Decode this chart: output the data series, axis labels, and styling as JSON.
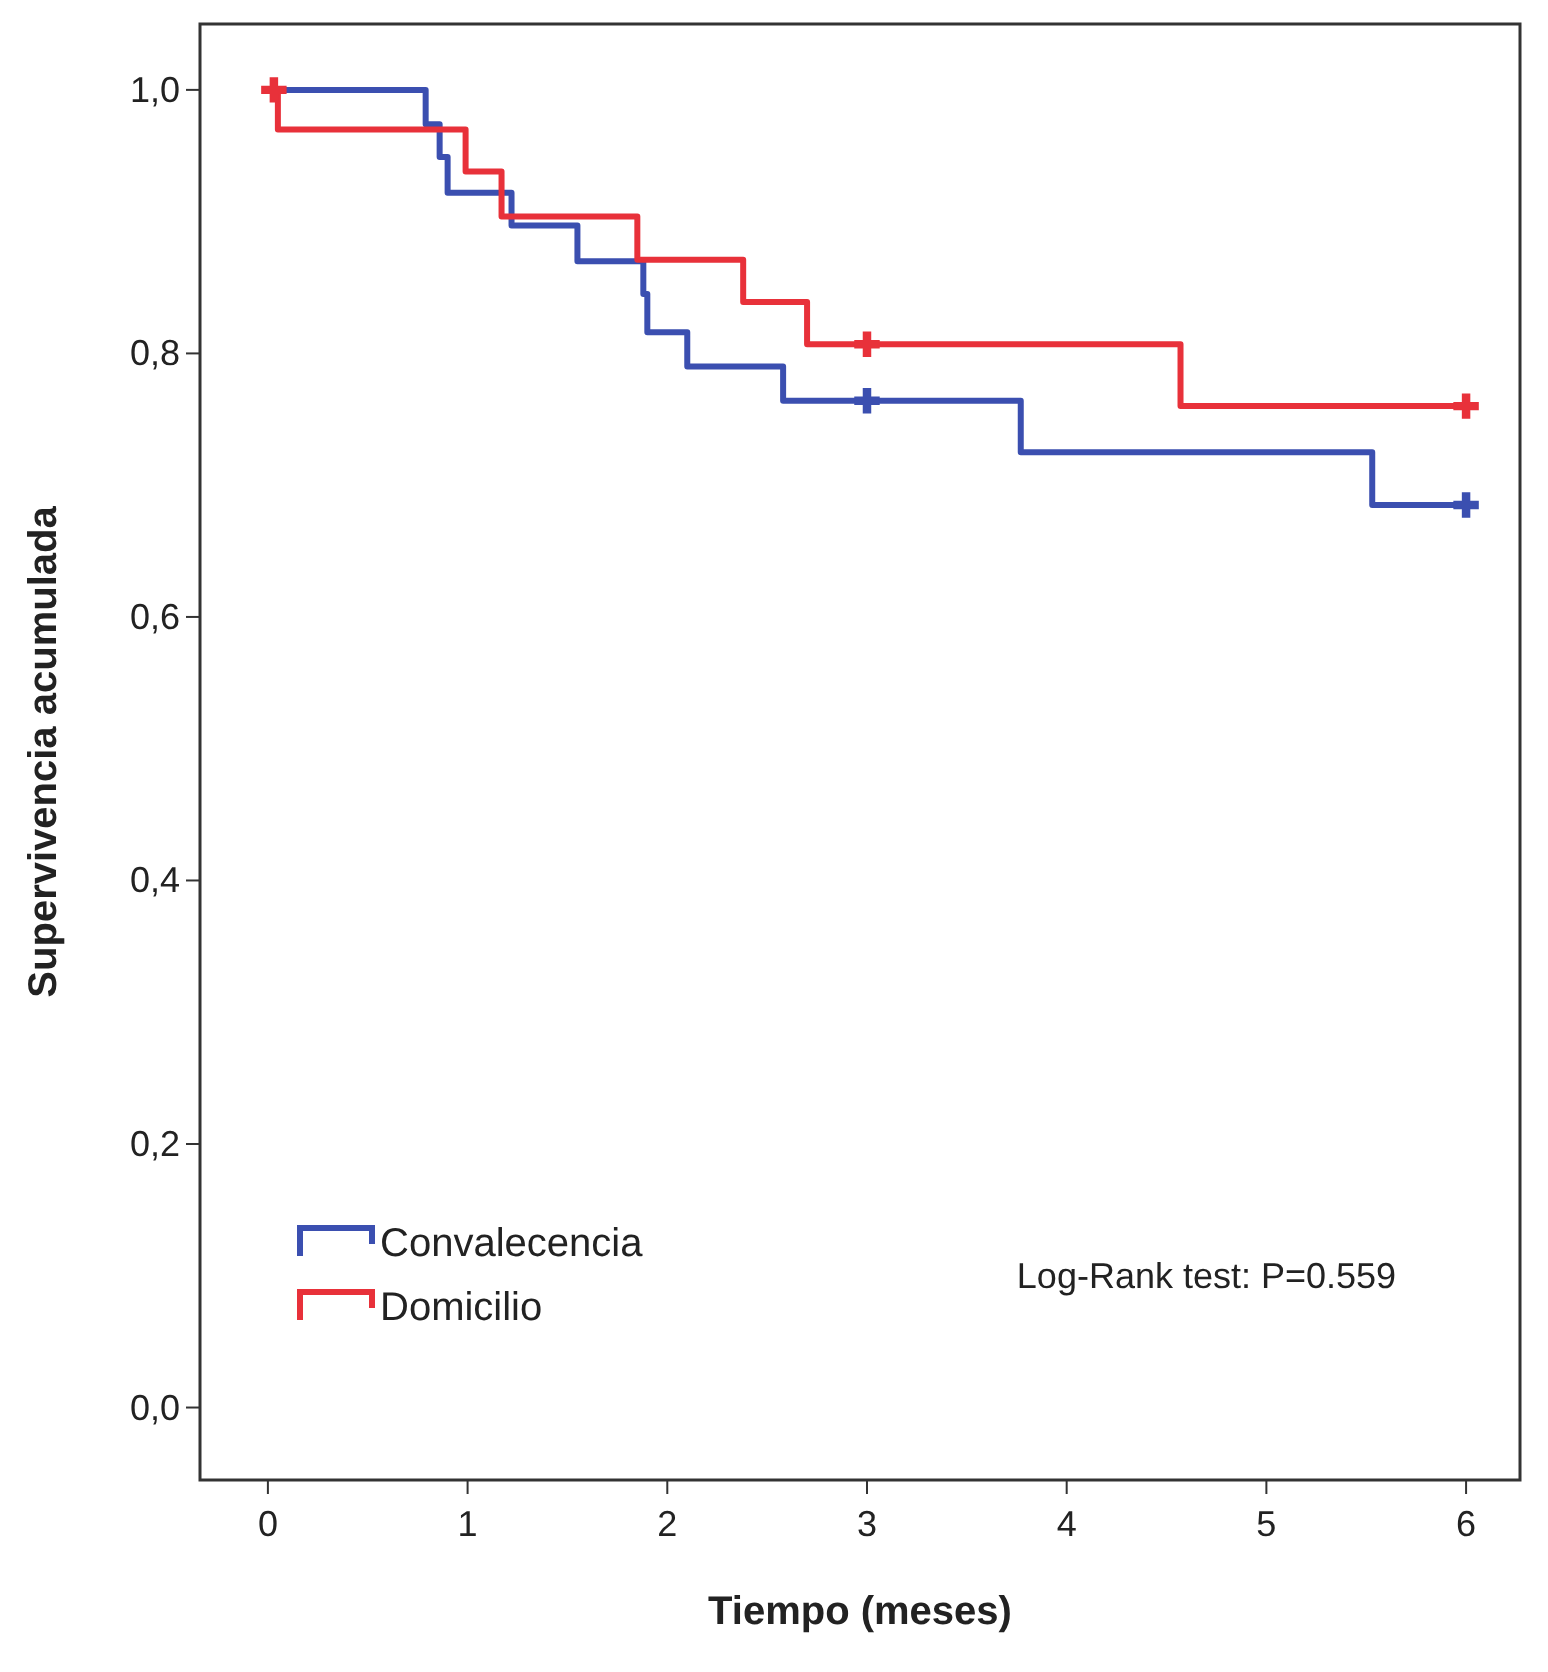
{
  "chart_data": {
    "type": "step",
    "xlabel": "Tiempo (meses)",
    "ylabel": "Supervivencia acumulada",
    "xlim": [
      -0.34,
      6.27
    ],
    "ylim": [
      -0.055,
      1.05
    ],
    "xticks": [
      0,
      1,
      2,
      3,
      4,
      5,
      6
    ],
    "yticks": [
      {
        "value": 0,
        "label": "0,0"
      },
      {
        "value": 0.2,
        "label": "0,2"
      },
      {
        "value": 0.4,
        "label": "0,4"
      },
      {
        "value": 0.6,
        "label": "0,6"
      },
      {
        "value": 0.8,
        "label": "0,8"
      },
      {
        "value": 1,
        "label": "1,0"
      }
    ],
    "grid": false,
    "legend": "bottom left",
    "annotations": [
      "Log-Rank test: P=0.559"
    ],
    "series": [
      {
        "name": "Convalecencia",
        "color": "#3b4fb0",
        "x": [
          0,
          0.79,
          0.86,
          0.9,
          1.22,
          1.55,
          1.88,
          1.9,
          2.1,
          2.58,
          3.77,
          5.53,
          6
        ],
        "values": [
          1,
          0.974,
          0.949,
          0.922,
          0.897,
          0.87,
          0.845,
          0.816,
          0.79,
          0.764,
          0.725,
          0.685,
          0.685
        ]
      },
      {
        "name": "Domicilio",
        "color": "#e8313a",
        "x": [
          0,
          0.05,
          0.99,
          1.17,
          1.85,
          2.38,
          2.7,
          4.57,
          6
        ],
        "values": [
          1,
          0.97,
          0.938,
          0.904,
          0.871,
          0.839,
          0.807,
          0.76,
          0.76
        ]
      },
      {
        "type": "scatter",
        "marker": "cross",
        "color": "#3b4fb0",
        "x": [
          3,
          6
        ],
        "values": [
          0.764,
          0.685
        ]
      },
      {
        "type": "scatter",
        "marker": "cross",
        "color": "#e8313a",
        "x": [
          0.03,
          3,
          6
        ],
        "values": [
          1,
          0.807,
          0.76
        ]
      }
    ]
  }
}
